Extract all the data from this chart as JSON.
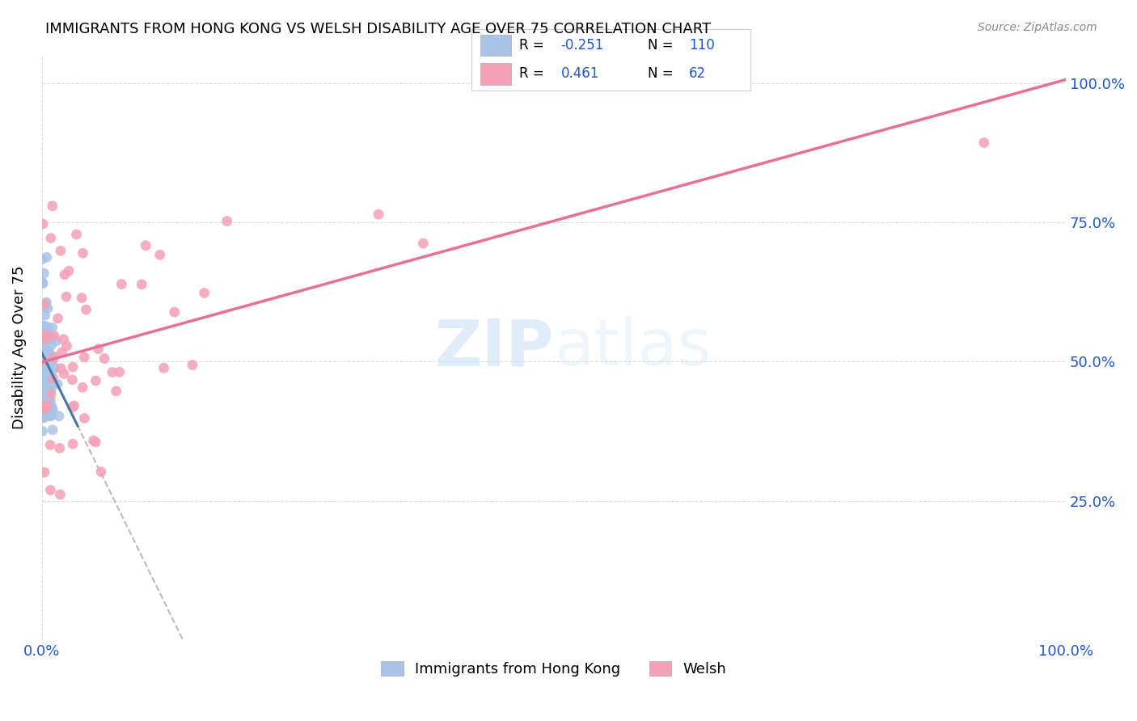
{
  "title": "IMMIGRANTS FROM HONG KONG VS WELSH DISABILITY AGE OVER 75 CORRELATION CHART",
  "source": "Source: ZipAtlas.com",
  "ylabel": "Disability Age Over 75",
  "hk_color": "#aac4e8",
  "welsh_color": "#f4a0b5",
  "hk_trend_color": "#4477aa",
  "welsh_trend_color": "#e87090",
  "dashed_trend_color": "#bbbbbb",
  "hk_R": -0.251,
  "hk_N": 110,
  "welsh_R": 0.461,
  "welsh_N": 62,
  "seed": 42
}
